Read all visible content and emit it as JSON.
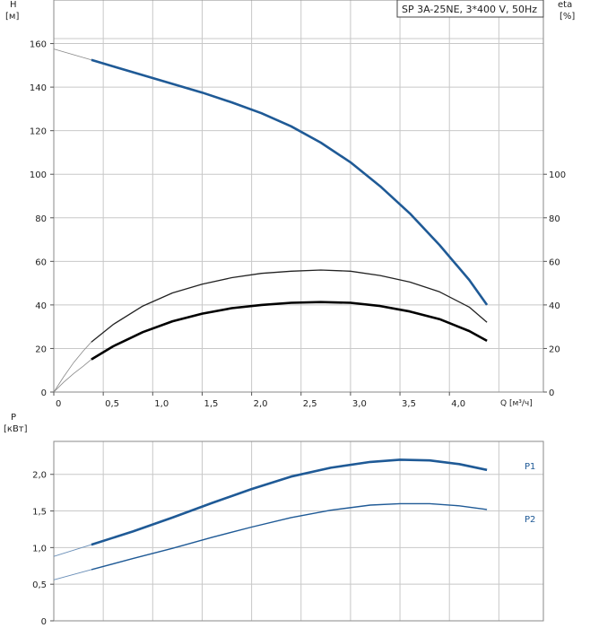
{
  "chart_data": [
    {
      "type": "line",
      "title": "SP 3A-25NE, 3*400 V, 50Hz",
      "x": {
        "label": "Q [м³/ч]",
        "range": [
          0,
          4.95
        ],
        "ticks": [
          0,
          0.5,
          1.0,
          1.5,
          2.0,
          2.5,
          3.0,
          3.5,
          4.0
        ],
        "tick_labels": [
          "0",
          "0,5",
          "1,0",
          "1,5",
          "2,0",
          "2,5",
          "3,0",
          "3,5",
          "4,0"
        ]
      },
      "y_left": {
        "label_top": "H",
        "label_unit": "[м]",
        "range": [
          0,
          180
        ],
        "ticks": [
          0,
          20,
          40,
          60,
          80,
          100,
          120,
          140,
          160
        ],
        "tick_labels": [
          "0",
          "20",
          "40",
          "60",
          "80",
          "100",
          "120",
          "140",
          "160"
        ]
      },
      "y_right": {
        "label_top": "eta",
        "label_unit": "[%]",
        "range": [
          0,
          180
        ],
        "ticks": [
          0,
          20,
          40,
          60,
          80,
          100
        ],
        "tick_labels": [
          "0",
          "20",
          "40",
          "60",
          "80",
          "100"
        ]
      },
      "grid": true,
      "series": [
        {
          "id": "head",
          "color": "#1f5a96",
          "style": "thick",
          "x": [
            0.38,
            0.6,
            0.9,
            1.2,
            1.5,
            1.8,
            2.1,
            2.4,
            2.7,
            3.0,
            3.3,
            3.6,
            3.9,
            4.2,
            4.38
          ],
          "y": [
            152.5,
            149.5,
            145.5,
            141.5,
            137.5,
            133.0,
            128.0,
            122.0,
            114.5,
            105.5,
            94.5,
            82.0,
            67.5,
            51.5,
            40.0
          ],
          "extrap_x": [
            0,
            0.38
          ],
          "extrap_y": [
            157.5,
            152.5
          ]
        },
        {
          "id": "eta-upper",
          "color": "#222222",
          "style": "thin",
          "x": [
            0.38,
            0.6,
            0.9,
            1.2,
            1.5,
            1.8,
            2.1,
            2.4,
            2.7,
            3.0,
            3.3,
            3.6,
            3.9,
            4.2,
            4.38
          ],
          "y": [
            23.0,
            31.0,
            39.5,
            45.5,
            49.5,
            52.5,
            54.5,
            55.5,
            56.0,
            55.5,
            53.5,
            50.5,
            46.0,
            39.0,
            32.0
          ],
          "extrap_x": [
            0,
            0.1,
            0.2,
            0.3,
            0.38
          ],
          "extrap_y": [
            0,
            7.0,
            13.5,
            19.0,
            23.0
          ]
        },
        {
          "id": "eta-lower",
          "color": "#000000",
          "style": "thick",
          "x": [
            0.38,
            0.6,
            0.9,
            1.2,
            1.5,
            1.8,
            2.1,
            2.4,
            2.7,
            3.0,
            3.3,
            3.6,
            3.9,
            4.2,
            4.38
          ],
          "y": [
            15.0,
            21.0,
            27.5,
            32.5,
            36.0,
            38.5,
            40.0,
            41.0,
            41.3,
            41.0,
            39.5,
            37.0,
            33.5,
            28.0,
            23.5
          ],
          "extrap_x": [
            0,
            0.1,
            0.2,
            0.3,
            0.38
          ],
          "extrap_y": [
            0,
            4.5,
            8.5,
            12.0,
            15.0
          ]
        }
      ]
    },
    {
      "type": "line",
      "x": {
        "range": [
          0,
          4.95
        ],
        "ticks": [
          0,
          0.5,
          1.0,
          1.5,
          2.0,
          2.5,
          3.0,
          3.5,
          4.0
        ]
      },
      "y_left": {
        "label_top": "P",
        "label_unit": "[кВт]",
        "range": [
          0,
          2.45
        ],
        "ticks": [
          0,
          0.5,
          1.0,
          1.5,
          2.0
        ],
        "tick_labels": [
          "0",
          "0,5",
          "1,0",
          "1,5",
          "2,0"
        ]
      },
      "grid": true,
      "series": [
        {
          "name": "P1",
          "color": "#1f5a96",
          "style": "thick",
          "x": [
            0.38,
            0.8,
            1.2,
            1.6,
            2.0,
            2.4,
            2.8,
            3.2,
            3.5,
            3.8,
            4.1,
            4.38
          ],
          "y": [
            1.04,
            1.22,
            1.41,
            1.61,
            1.8,
            1.97,
            2.09,
            2.17,
            2.2,
            2.19,
            2.14,
            2.06
          ],
          "extrap_x": [
            0,
            0.38
          ],
          "extrap_y": [
            0.88,
            1.04
          ]
        },
        {
          "name": "P2",
          "color": "#1f5a96",
          "style": "thin",
          "x": [
            0.38,
            0.8,
            1.2,
            1.6,
            2.0,
            2.4,
            2.8,
            3.2,
            3.5,
            3.8,
            4.1,
            4.38
          ],
          "y": [
            0.7,
            0.85,
            0.99,
            1.14,
            1.28,
            1.41,
            1.51,
            1.58,
            1.6,
            1.6,
            1.57,
            1.52
          ],
          "extrap_x": [
            0,
            0.38
          ],
          "extrap_y": [
            0.56,
            0.7
          ]
        }
      ]
    }
  ]
}
